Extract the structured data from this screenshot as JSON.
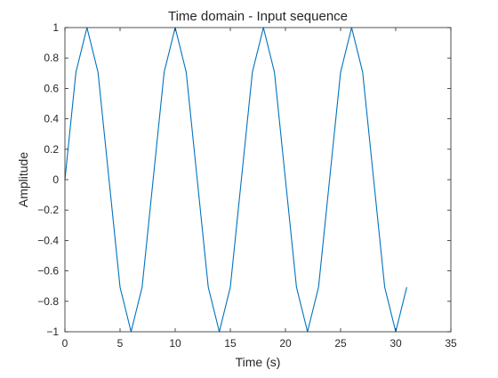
{
  "chart_data": {
    "type": "line",
    "title": "Time domain - Input sequence",
    "xlabel": "Time (s)",
    "ylabel": "Amplitude",
    "xlim": [
      0,
      35
    ],
    "ylim": [
      -1,
      1
    ],
    "grid": false,
    "xticks": [
      0,
      5,
      10,
      15,
      20,
      25,
      30,
      35
    ],
    "xtick_labels": [
      "0",
      "5",
      "10",
      "15",
      "20",
      "25",
      "30",
      "35"
    ],
    "yticks": [
      -1,
      -0.8,
      -0.6,
      -0.4,
      -0.2,
      0,
      0.2,
      0.4,
      0.6,
      0.8,
      1
    ],
    "ytick_labels": [
      "−1",
      "−0.8",
      "−0.6",
      "−0.4",
      "−0.2",
      "0",
      "0.2",
      "0.4",
      "0.6",
      "0.8",
      "1"
    ],
    "series": [
      {
        "color": "#0072bd",
        "x": [
          0,
          1,
          2,
          3,
          4,
          5,
          6,
          7,
          8,
          9,
          10,
          11,
          12,
          13,
          14,
          15,
          16,
          17,
          18,
          19,
          20,
          21,
          22,
          23,
          24,
          25,
          26,
          27,
          28,
          29,
          30,
          31
        ],
        "y": [
          0,
          0.7071,
          1,
          0.7071,
          0,
          -0.7071,
          -1,
          -0.7071,
          0,
          0.7071,
          1,
          0.7071,
          0,
          -0.7071,
          -1,
          -0.7071,
          0,
          0.7071,
          1,
          0.7071,
          0,
          -0.7071,
          -1,
          -0.7071,
          0,
          0.7071,
          1,
          0.7071,
          0,
          -0.7071,
          -1,
          -0.7071
        ]
      }
    ]
  }
}
